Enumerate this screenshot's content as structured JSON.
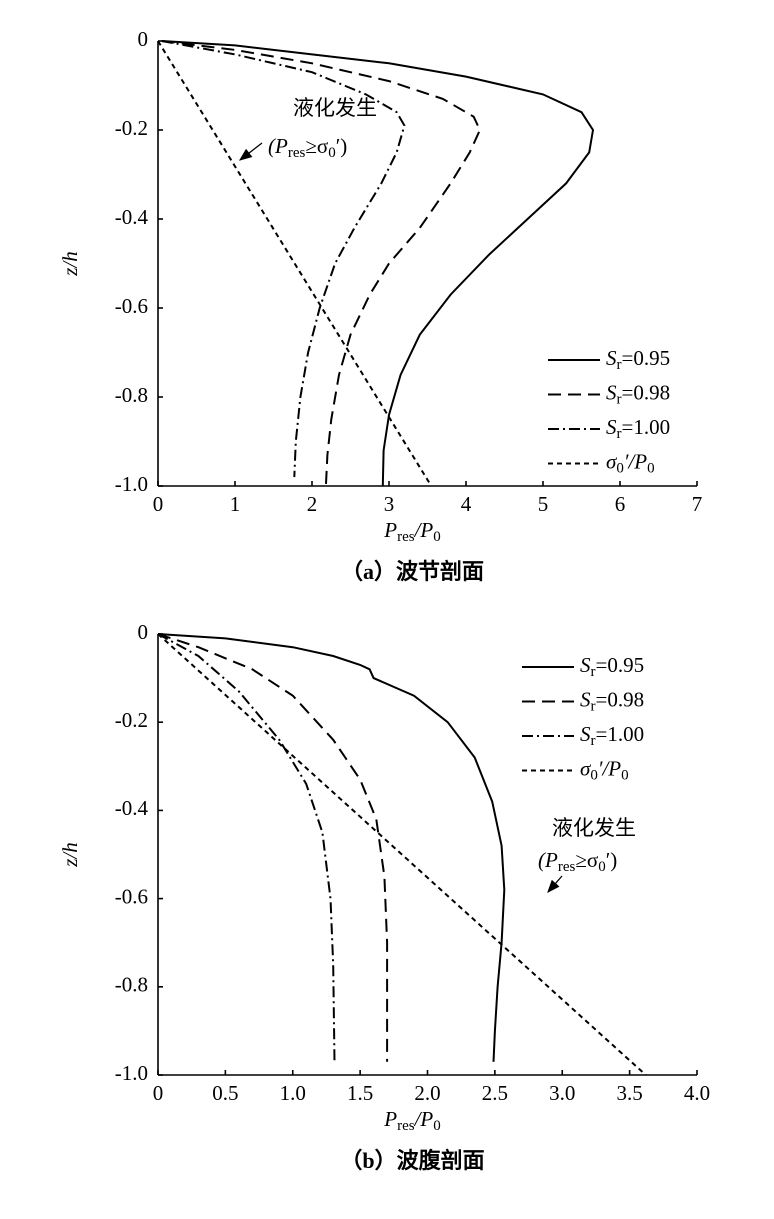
{
  "chart_data": [
    {
      "type": "line",
      "xlabel": [
        "P",
        "res",
        "/P",
        "0"
      ],
      "ylabel": "z/h",
      "caption": "（a）波节剖面",
      "xlim": [
        0,
        7
      ],
      "ylim": [
        -1,
        0
      ],
      "xticks": [
        0,
        1,
        2,
        3,
        4,
        5,
        6,
        7
      ],
      "yticks": [
        0,
        -0.2,
        -0.4,
        -0.6,
        -0.8,
        {
          "value": -1,
          "label": "-1.0"
        }
      ],
      "legend": "lower right",
      "annotation": {
        "text": "液化发生",
        "note": [
          "(P",
          "res",
          "≥σ",
          "0",
          "′)"
        ]
      },
      "series": [
        {
          "name": [
            "S",
            "r",
            "=0.95"
          ],
          "color": "#000",
          "linestyle": "solid",
          "x": [
            0.05,
            1,
            2,
            3,
            4,
            5,
            5.5,
            5.65,
            5.6,
            5.3,
            4.8,
            4.3,
            3.8,
            3.4,
            3.15,
            3.0,
            2.93,
            2.92
          ],
          "values": [
            0,
            -0.01,
            -0.03,
            -0.05,
            -0.08,
            -0.12,
            -0.16,
            -0.2,
            -0.25,
            -0.32,
            -0.4,
            -0.48,
            -0.57,
            -0.66,
            -0.75,
            -0.84,
            -0.92,
            -1.0
          ]
        },
        {
          "name": [
            "S",
            "r",
            "=0.98"
          ],
          "color": "#000",
          "linestyle": "dashed",
          "x": [
            0.05,
            1,
            2,
            3,
            3.7,
            4.1,
            4.18,
            4.05,
            3.8,
            3.4,
            3.0,
            2.75,
            2.5,
            2.35,
            2.25,
            2.2,
            2.18
          ],
          "values": [
            0,
            -0.02,
            -0.05,
            -0.09,
            -0.13,
            -0.17,
            -0.2,
            -0.25,
            -0.32,
            -0.42,
            -0.5,
            -0.57,
            -0.66,
            -0.75,
            -0.85,
            -0.93,
            -1.0
          ]
        },
        {
          "name": [
            "S",
            "r",
            "=1.00"
          ],
          "color": "#000",
          "linestyle": "dashdot",
          "x": [
            0.05,
            1,
            2,
            2.7,
            3.1,
            3.2,
            3.1,
            2.9,
            2.55,
            2.3,
            2.1,
            1.95,
            1.85,
            1.79,
            1.77
          ],
          "values": [
            0,
            -0.03,
            -0.07,
            -0.12,
            -0.16,
            -0.19,
            -0.25,
            -0.32,
            -0.42,
            -0.5,
            -0.6,
            -0.7,
            -0.8,
            -0.9,
            -0.98
          ]
        },
        {
          "name": [
            "σ",
            "0",
            "′/P",
            "0"
          ],
          "color": "#000",
          "linestyle": "dotted",
          "x": [
            0,
            3.55
          ],
          "values": [
            0,
            -1.0
          ]
        }
      ]
    },
    {
      "type": "line",
      "xlabel": [
        "P",
        "res",
        "/P",
        "0"
      ],
      "ylabel": "z/h",
      "caption": "（b）波腹剖面",
      "xlim": [
        0,
        4
      ],
      "ylim": [
        -1,
        0
      ],
      "xticks": [
        0,
        0.5,
        {
          "value": 1,
          "label": "1.0"
        },
        1.5,
        {
          "value": 2,
          "label": "2.0"
        },
        2.5,
        {
          "value": 3,
          "label": "3.0"
        },
        3.5,
        {
          "value": 4,
          "label": "4.0"
        }
      ],
      "yticks": [
        0,
        -0.2,
        -0.4,
        -0.6,
        -0.8,
        {
          "value": -1,
          "label": "-1.0"
        }
      ],
      "legend": "upper right",
      "annotation": {
        "text": "液化发生",
        "note": [
          "(P",
          "res",
          "≥σ",
          "0",
          "′)"
        ]
      },
      "series": [
        {
          "name": [
            "S",
            "r",
            "=0.95"
          ],
          "color": "#000",
          "linestyle": "solid",
          "x": [
            0,
            0.5,
            1,
            1.3,
            1.5,
            1.57,
            1.6,
            1.9,
            2.15,
            2.35,
            2.48,
            2.55,
            2.57,
            2.55,
            2.52,
            2.5,
            2.49
          ],
          "values": [
            0,
            -0.01,
            -0.03,
            -0.05,
            -0.07,
            -0.08,
            -0.1,
            -0.14,
            -0.2,
            -0.28,
            -0.38,
            -0.48,
            -0.58,
            -0.7,
            -0.8,
            -0.9,
            -0.97
          ]
        },
        {
          "name": [
            "S",
            "r",
            "=0.98"
          ],
          "color": "#000",
          "linestyle": "dashed",
          "x": [
            0,
            0.3,
            0.7,
            1.0,
            1.3,
            1.5,
            1.62,
            1.68,
            1.7,
            1.7
          ],
          "values": [
            0,
            -0.03,
            -0.08,
            -0.14,
            -0.24,
            -0.33,
            -0.42,
            -0.55,
            -0.7,
            -0.97
          ]
        },
        {
          "name": [
            "S",
            "r",
            "=1.00"
          ],
          "color": "#000",
          "linestyle": "dashdot",
          "x": [
            0,
            0.3,
            0.6,
            0.9,
            1.1,
            1.22,
            1.28,
            1.3,
            1.31
          ],
          "values": [
            0,
            -0.05,
            -0.13,
            -0.24,
            -0.34,
            -0.45,
            -0.6,
            -0.75,
            -0.97
          ]
        },
        {
          "name": [
            "σ",
            "0",
            "′/P",
            "0"
          ],
          "color": "#000",
          "linestyle": "dotted",
          "x": [
            0,
            3.62
          ],
          "values": [
            0,
            -1.0
          ]
        }
      ]
    }
  ]
}
